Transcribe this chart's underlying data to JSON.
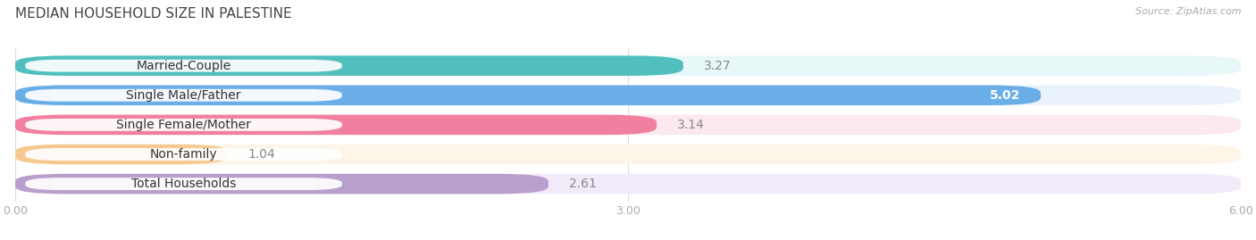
{
  "title": "MEDIAN HOUSEHOLD SIZE IN PALESTINE",
  "source": "Source: ZipAtlas.com",
  "categories": [
    "Married-Couple",
    "Single Male/Father",
    "Single Female/Mother",
    "Non-family",
    "Total Households"
  ],
  "values": [
    3.27,
    5.02,
    3.14,
    1.04,
    2.61
  ],
  "bar_colors": [
    "#52BFBF",
    "#6AAEE8",
    "#F07FA0",
    "#F5C990",
    "#B89FCC"
  ],
  "bar_bg_colors": [
    "#E8F7F7",
    "#EAF2FC",
    "#FCE8F0",
    "#FDF5E8",
    "#F2EAF8"
  ],
  "xlim": [
    0,
    6.0
  ],
  "xticks": [
    0.0,
    3.0,
    6.0
  ],
  "title_fontsize": 11,
  "label_fontsize": 10,
  "value_fontsize": 10,
  "background_color": "#ffffff",
  "source_color": "#aaaaaa",
  "tick_color": "#aaaaaa"
}
